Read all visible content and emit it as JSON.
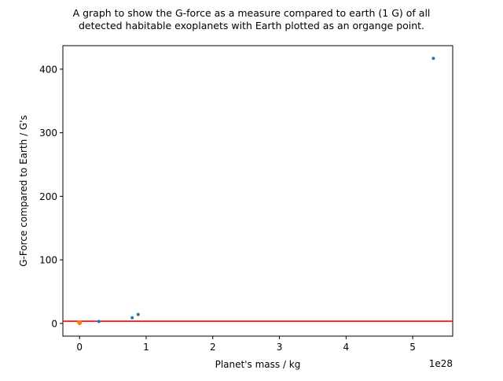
{
  "chart_data": {
    "type": "scatter",
    "title_lines": [
      "A graph to show the G-force as a measure compared to earth (1 G) of all",
      "detected habitable exoplanets with Earth plotted as an organge point."
    ],
    "xlabel": "Planet's mass / kg",
    "ylabel": "G-Force compared to Earth / G's",
    "x_offset_text": "1e28",
    "x_scale": 1e+28,
    "xlim": [
      -0.25,
      5.6
    ],
    "ylim": [
      -20,
      437
    ],
    "xticks": [
      0,
      1,
      2,
      3,
      4,
      5
    ],
    "xtick_labels": [
      "0",
      "1",
      "2",
      "3",
      "4",
      "5"
    ],
    "yticks": [
      0,
      100,
      200,
      300,
      400
    ],
    "ytick_labels": [
      "0",
      "100",
      "200",
      "300",
      "400"
    ],
    "grid": false,
    "series": [
      {
        "color": "#1f77b4",
        "marker_size": "small",
        "points": [
          {
            "x": 0.29,
            "y": 3
          },
          {
            "x": 0.79,
            "y": 9
          },
          {
            "x": 0.88,
            "y": 14
          },
          {
            "x": 5.31,
            "y": 417
          }
        ]
      },
      {
        "color": "#ff7f0e",
        "marker_size": "medium",
        "points": [
          {
            "x": 0.0006,
            "y": 1
          }
        ]
      }
    ],
    "reference_line": {
      "y": 3.5,
      "color": "#ff0000"
    }
  }
}
